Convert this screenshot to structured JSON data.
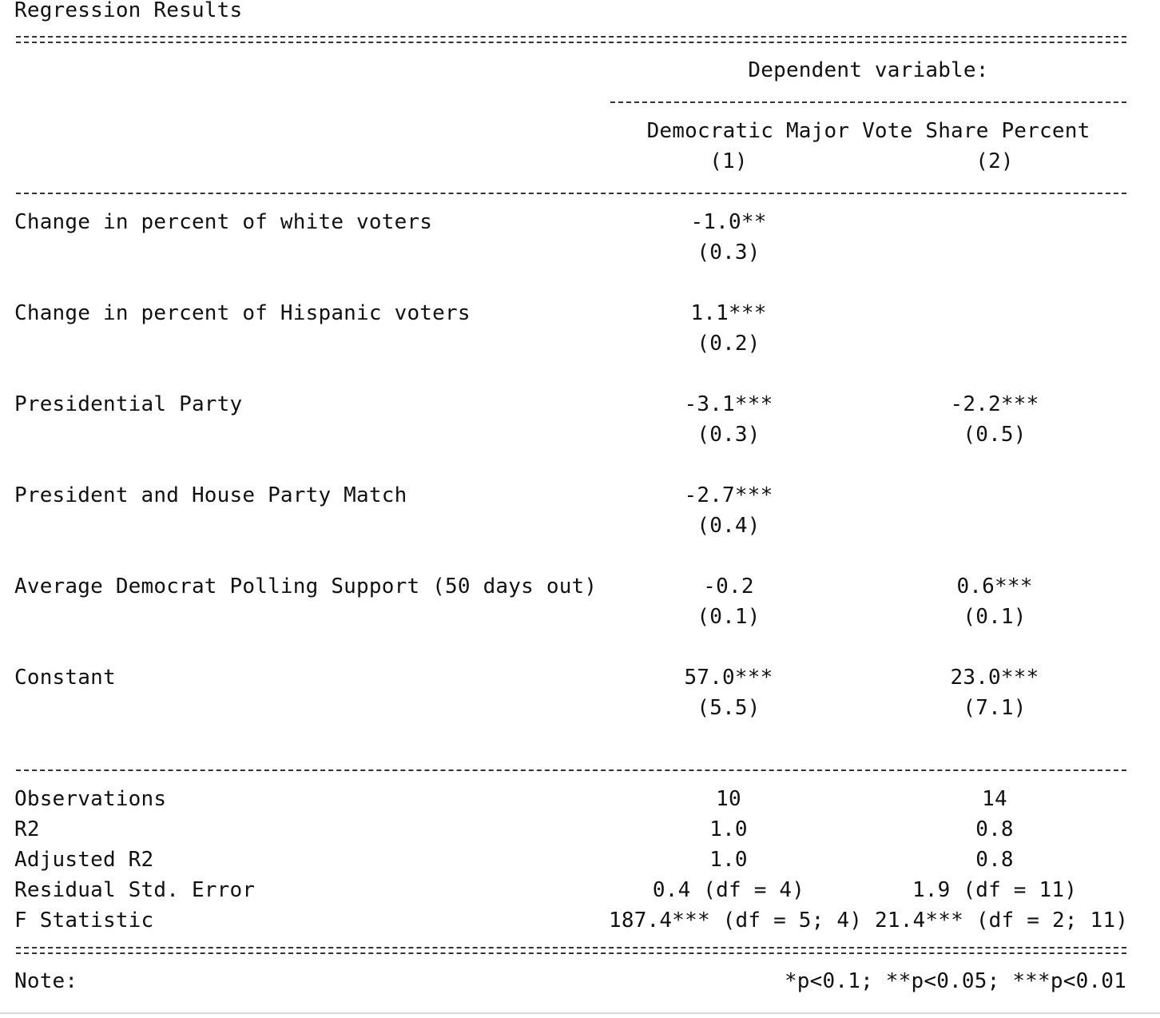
{
  "title": "Regression Results",
  "header": {
    "dependent_variable_label": "Dependent variable:",
    "dependent_variable": "Democratic Major Vote Share Percent",
    "columns": [
      "(1)",
      "(2)"
    ]
  },
  "rows": [
    {
      "label": "Change in percent of white voters",
      "col1": "-1.0**",
      "col1_se": "(0.3)",
      "col2": "",
      "col2_se": ""
    },
    {
      "label": "Change in percent of Hispanic voters",
      "col1": "1.1***",
      "col1_se": "(0.2)",
      "col2": "",
      "col2_se": ""
    },
    {
      "label": "Presidential Party",
      "col1": "-3.1***",
      "col1_se": "(0.3)",
      "col2": "-2.2***",
      "col2_se": "(0.5)"
    },
    {
      "label": "President and House Party Match",
      "col1": "-2.7***",
      "col1_se": "(0.4)",
      "col2": "",
      "col2_se": ""
    },
    {
      "label": "Average Democrat Polling Support (50 days out)",
      "col1": "-0.2",
      "col1_se": "(0.1)",
      "col2": "0.6***",
      "col2_se": "(0.1)"
    },
    {
      "label": "Constant",
      "col1": "57.0***",
      "col1_se": "(5.5)",
      "col2": "23.0***",
      "col2_se": "(7.1)"
    }
  ],
  "stats": [
    {
      "label": "Observations",
      "col1": "10",
      "col2": "14"
    },
    {
      "label": "R2",
      "col1": "1.0",
      "col2": "0.8"
    },
    {
      "label": "Adjusted R2",
      "col1": "1.0",
      "col2": "0.8"
    },
    {
      "label": "Residual Std. Error",
      "col1": "0.4 (df = 4)",
      "col2": "1.9 (df = 11)"
    },
    {
      "label": "F Statistic",
      "col1": "187.4*** (df = 5; 4)",
      "col2": "21.4*** (df = 2; 11)"
    }
  ],
  "note": {
    "label": "Note:",
    "text": "*p<0.1; **p<0.05; ***p<0.01"
  }
}
